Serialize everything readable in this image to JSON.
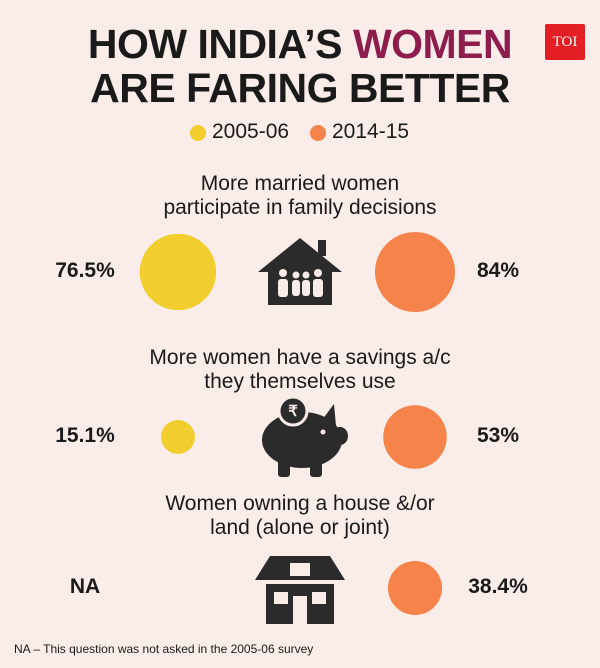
{
  "logo": "TOI",
  "chart_data": {
    "type": "bubble",
    "title_parts": [
      "HOW INDIA’S ",
      "WOMEN",
      "ARE FARING BETTER"
    ],
    "categories": [
      "More married women\nparticipate in family decisions",
      "More women have a savings a/c\nthey themselves use",
      "Women owning a house &/or\nland (alone or joint)"
    ],
    "series": [
      {
        "name": "2005-06",
        "color": "#f2cd2e",
        "values": [
          76.5,
          15.1,
          null
        ],
        "value_labels": [
          "76.5%",
          "15.1%",
          "NA"
        ]
      },
      {
        "name": "2014-15",
        "color": "#f5834a",
        "values": [
          84,
          53,
          38.4
        ],
        "value_labels": [
          "84%",
          "53%",
          "38.4%"
        ]
      }
    ],
    "note": "NA – This question was not asked in the 2005-06 survey"
  }
}
